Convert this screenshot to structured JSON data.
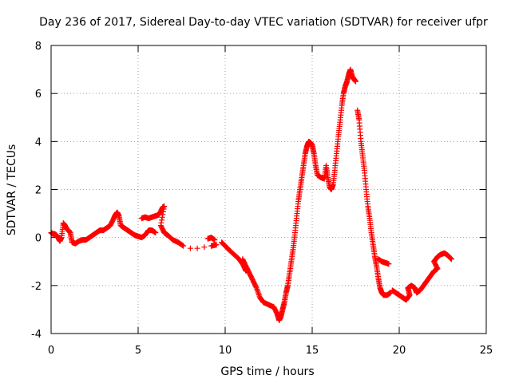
{
  "chart_data": {
    "type": "scatter",
    "title": "Day 236 of 2017, Sidereal Day-to-day VTEC variation (SDTVAR) for receiver ufpr",
    "xlabel": "GPS time / hours",
    "ylabel": "SDTVAR / TECUs",
    "xlim": [
      0,
      25
    ],
    "ylim": [
      -4,
      8
    ],
    "xticks": [
      "0",
      "5",
      "10",
      "15",
      "20",
      "25"
    ],
    "yticks": [
      "-4",
      "-2",
      "0",
      "2",
      "4",
      "6",
      "8"
    ],
    "grid": true,
    "legend": "none",
    "marker": "+",
    "series": [
      {
        "name": "SDTVAR",
        "color": "#ff0000",
        "points": [
          [
            0.0,
            0.2
          ],
          [
            0.1,
            0.15
          ],
          [
            0.2,
            0.15
          ],
          [
            0.3,
            0.1
          ],
          [
            0.4,
            0.0
          ],
          [
            0.5,
            -0.15
          ],
          [
            0.6,
            0.0
          ],
          [
            0.7,
            0.6
          ],
          [
            0.8,
            0.5
          ],
          [
            0.9,
            0.35
          ],
          [
            1.0,
            0.3
          ],
          [
            1.1,
            0.2
          ],
          [
            1.2,
            -0.2
          ],
          [
            1.4,
            -0.25
          ],
          [
            1.6,
            -0.15
          ],
          [
            1.8,
            -0.1
          ],
          [
            2.0,
            -0.1
          ],
          [
            2.2,
            0.0
          ],
          [
            2.4,
            0.1
          ],
          [
            2.6,
            0.2
          ],
          [
            2.8,
            0.3
          ],
          [
            3.0,
            0.3
          ],
          [
            3.2,
            0.4
          ],
          [
            3.4,
            0.5
          ],
          [
            3.6,
            0.8
          ],
          [
            3.7,
            0.95
          ],
          [
            3.8,
            1.05
          ],
          [
            3.9,
            0.9
          ],
          [
            4.0,
            0.5
          ],
          [
            4.2,
            0.4
          ],
          [
            4.4,
            0.3
          ],
          [
            4.6,
            0.2
          ],
          [
            4.8,
            0.1
          ],
          [
            5.0,
            0.05
          ],
          [
            5.2,
            0.0
          ],
          [
            5.4,
            0.1
          ],
          [
            5.6,
            0.3
          ],
          [
            5.8,
            0.3
          ],
          [
            6.0,
            0.2
          ],
          [
            5.2,
            0.8
          ],
          [
            5.4,
            0.85
          ],
          [
            5.6,
            0.8
          ],
          [
            5.8,
            0.85
          ],
          [
            6.0,
            0.9
          ],
          [
            6.2,
            0.95
          ],
          [
            6.4,
            1.25
          ],
          [
            6.5,
            1.3
          ],
          [
            6.3,
            0.5
          ],
          [
            6.5,
            0.2
          ],
          [
            6.7,
            0.1
          ],
          [
            7.0,
            -0.1
          ],
          [
            7.3,
            -0.2
          ],
          [
            7.6,
            -0.35
          ],
          [
            8.0,
            -0.45
          ],
          [
            8.4,
            -0.45
          ],
          [
            8.8,
            -0.4
          ],
          [
            9.2,
            -0.35
          ],
          [
            9.5,
            -0.3
          ],
          [
            9.0,
            -0.05
          ],
          [
            9.2,
            0.0
          ],
          [
            9.4,
            -0.1
          ],
          [
            9.8,
            -0.2
          ],
          [
            10.0,
            -0.35
          ],
          [
            10.2,
            -0.5
          ],
          [
            10.5,
            -0.7
          ],
          [
            10.8,
            -0.9
          ],
          [
            11.0,
            -1.1
          ],
          [
            11.2,
            -1.4
          ],
          [
            11.0,
            -0.9
          ],
          [
            11.2,
            -1.2
          ],
          [
            11.4,
            -1.5
          ],
          [
            11.6,
            -1.8
          ],
          [
            11.8,
            -2.1
          ],
          [
            12.0,
            -2.5
          ],
          [
            12.2,
            -2.7
          ],
          [
            12.5,
            -2.8
          ],
          [
            12.8,
            -2.9
          ],
          [
            13.0,
            -3.2
          ],
          [
            13.1,
            -3.45
          ],
          [
            13.2,
            -3.3
          ],
          [
            13.3,
            -3.0
          ],
          [
            13.4,
            -2.7
          ],
          [
            13.5,
            -2.3
          ],
          [
            13.6,
            -2.0
          ],
          [
            13.7,
            -1.5
          ],
          [
            13.8,
            -1.0
          ],
          [
            13.9,
            -0.5
          ],
          [
            14.0,
            0.1
          ],
          [
            14.1,
            0.8
          ],
          [
            14.2,
            1.5
          ],
          [
            14.3,
            2.0
          ],
          [
            14.4,
            2.5
          ],
          [
            14.5,
            3.0
          ],
          [
            14.6,
            3.5
          ],
          [
            14.7,
            3.8
          ],
          [
            14.8,
            4.0
          ],
          [
            14.9,
            3.95
          ],
          [
            15.0,
            3.85
          ],
          [
            15.1,
            3.5
          ],
          [
            15.2,
            3.0
          ],
          [
            15.3,
            2.6
          ],
          [
            15.5,
            2.5
          ],
          [
            15.7,
            2.45
          ],
          [
            15.8,
            3.0
          ],
          [
            15.9,
            2.5
          ],
          [
            16.0,
            2.1
          ],
          [
            16.1,
            2.0
          ],
          [
            16.2,
            2.2
          ],
          [
            16.3,
            2.8
          ],
          [
            16.4,
            3.5
          ],
          [
            16.5,
            4.2
          ],
          [
            16.6,
            4.8
          ],
          [
            16.7,
            5.5
          ],
          [
            16.8,
            6.0
          ],
          [
            16.9,
            6.3
          ],
          [
            17.0,
            6.5
          ],
          [
            17.1,
            6.8
          ],
          [
            17.2,
            7.0
          ],
          [
            17.3,
            6.7
          ],
          [
            17.4,
            6.6
          ],
          [
            17.5,
            6.5
          ],
          [
            17.6,
            5.3
          ],
          [
            17.7,
            4.9
          ],
          [
            17.8,
            4.0
          ],
          [
            17.9,
            3.4
          ],
          [
            18.0,
            2.8
          ],
          [
            18.1,
            2.0
          ],
          [
            18.2,
            1.3
          ],
          [
            18.3,
            0.8
          ],
          [
            18.4,
            0.2
          ],
          [
            18.5,
            -0.3
          ],
          [
            18.6,
            -0.8
          ],
          [
            18.7,
            -1.2
          ],
          [
            18.8,
            -1.7
          ],
          [
            18.9,
            -2.1
          ],
          [
            19.0,
            -2.3
          ],
          [
            19.1,
            -2.4
          ],
          [
            19.3,
            -2.4
          ],
          [
            19.5,
            -2.3
          ],
          [
            18.8,
            -0.9
          ],
          [
            19.0,
            -1.0
          ],
          [
            19.2,
            -1.05
          ],
          [
            19.4,
            -1.1
          ],
          [
            19.6,
            -2.2
          ],
          [
            19.8,
            -2.3
          ],
          [
            20.0,
            -2.4
          ],
          [
            20.2,
            -2.5
          ],
          [
            20.4,
            -2.6
          ],
          [
            20.6,
            -2.4
          ],
          [
            20.5,
            -2.1
          ],
          [
            20.7,
            -2.0
          ],
          [
            20.9,
            -2.1
          ],
          [
            21.0,
            -2.3
          ],
          [
            21.2,
            -2.2
          ],
          [
            21.4,
            -2.0
          ],
          [
            21.6,
            -1.8
          ],
          [
            21.8,
            -1.6
          ],
          [
            22.0,
            -1.4
          ],
          [
            22.2,
            -1.3
          ],
          [
            22.0,
            -1.0
          ],
          [
            22.2,
            -0.8
          ],
          [
            22.4,
            -0.7
          ],
          [
            22.6,
            -0.65
          ],
          [
            22.8,
            -0.75
          ],
          [
            23.0,
            -0.9
          ]
        ]
      }
    ]
  }
}
